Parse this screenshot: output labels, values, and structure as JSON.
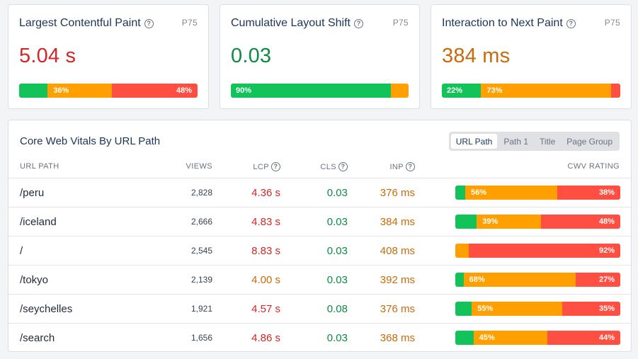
{
  "colors": {
    "good": "#12c35a",
    "needs_improvement": "#ffa000",
    "poor": "#ff4e42"
  },
  "help_icon": "question-circle-icon",
  "metrics": [
    {
      "title": "Largest Contentful Paint",
      "percentile": "P75",
      "value": "5.04 s",
      "status": "poor",
      "distribution": {
        "good": 16,
        "ni": 36,
        "poor": 48,
        "good_label": "",
        "ni_label": "36%",
        "poor_label": "48%"
      }
    },
    {
      "title": "Cumulative Layout Shift",
      "percentile": "P75",
      "value": "0.03",
      "status": "good",
      "distribution": {
        "good": 90,
        "ni": 10,
        "poor": 0,
        "good_label": "90%",
        "ni_label": "",
        "poor_label": ""
      }
    },
    {
      "title": "Interaction to Next Paint",
      "percentile": "P75",
      "value": "384 ms",
      "status": "ni",
      "distribution": {
        "good": 22,
        "ni": 73,
        "poor": 5,
        "good_label": "22%",
        "ni_label": "73%",
        "poor_label": ""
      }
    }
  ],
  "table": {
    "title": "Core Web Vitals By URL Path",
    "tabs": [
      {
        "label": "URL Path",
        "active": true
      },
      {
        "label": "Path 1",
        "active": false
      },
      {
        "label": "Title",
        "active": false
      },
      {
        "label": "Page Group",
        "active": false
      }
    ],
    "headers": {
      "path": "URL PATH",
      "views": "VIEWS",
      "lcp": "LCP",
      "cls": "CLS",
      "inp": "INP",
      "rating": "CWV RATING"
    },
    "rows": [
      {
        "path": "/peru",
        "views": "2,828",
        "lcp": "4.36 s",
        "lcp_status": "poor",
        "cls": "0.03",
        "cls_status": "good",
        "inp": "376 ms",
        "inp_status": "ni",
        "rating": {
          "good": 6,
          "ni": 56,
          "poor": 38,
          "good_label": "",
          "ni_label": "56%",
          "poor_label": "38%"
        }
      },
      {
        "path": "/iceland",
        "views": "2,666",
        "lcp": "4.83 s",
        "lcp_status": "poor",
        "cls": "0.03",
        "cls_status": "good",
        "inp": "384 ms",
        "inp_status": "ni",
        "rating": {
          "good": 13,
          "ni": 39,
          "poor": 48,
          "good_label": "",
          "ni_label": "39%",
          "poor_label": "48%"
        }
      },
      {
        "path": "/",
        "views": "2,545",
        "lcp": "8.83 s",
        "lcp_status": "poor",
        "cls": "0.03",
        "cls_status": "good",
        "inp": "408 ms",
        "inp_status": "ni",
        "rating": {
          "good": 0,
          "ni": 8,
          "poor": 92,
          "good_label": "",
          "ni_label": "",
          "poor_label": "92%"
        }
      },
      {
        "path": "/tokyo",
        "views": "2,139",
        "lcp": "4.00 s",
        "lcp_status": "ni",
        "cls": "0.03",
        "cls_status": "good",
        "inp": "392 ms",
        "inp_status": "ni",
        "rating": {
          "good": 5,
          "ni": 68,
          "poor": 27,
          "good_label": "",
          "ni_label": "68%",
          "poor_label": "27%"
        }
      },
      {
        "path": "/seychelles",
        "views": "1,921",
        "lcp": "4.57 s",
        "lcp_status": "poor",
        "cls": "0.08",
        "cls_status": "good",
        "inp": "376 ms",
        "inp_status": "ni",
        "rating": {
          "good": 10,
          "ni": 55,
          "poor": 35,
          "good_label": "",
          "ni_label": "55%",
          "poor_label": "35%"
        }
      },
      {
        "path": "/search",
        "views": "1,656",
        "lcp": "4.86 s",
        "lcp_status": "poor",
        "cls": "0.03",
        "cls_status": "good",
        "inp": "368 ms",
        "inp_status": "ni",
        "rating": {
          "good": 11,
          "ni": 45,
          "poor": 44,
          "good_label": "",
          "ni_label": "45%",
          "poor_label": "44%"
        }
      }
    ]
  }
}
